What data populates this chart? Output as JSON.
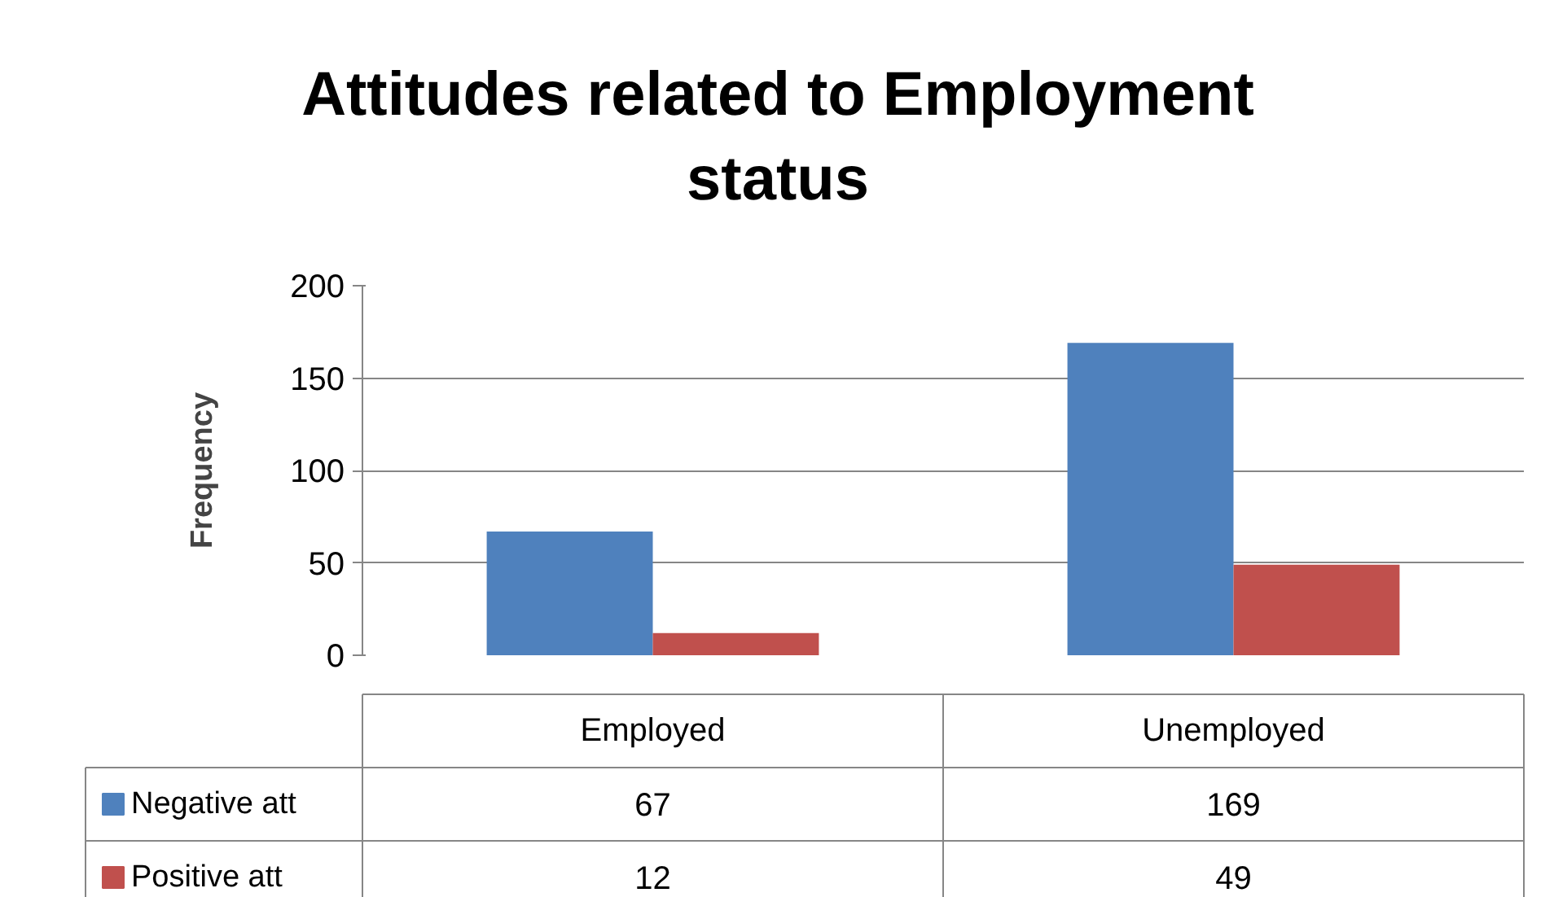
{
  "chart_data": {
    "type": "bar",
    "title": "Attitudes related to Employment status",
    "ylabel": "Frequency",
    "categories": [
      "Employed",
      "Unemployed"
    ],
    "series": [
      {
        "name": "Negative att",
        "color": "#4f81bd",
        "values": [
          67,
          169
        ]
      },
      {
        "name": "Positive att",
        "color": "#c0504d",
        "values": [
          12,
          49
        ]
      }
    ],
    "ylim": [
      0,
      200
    ],
    "yticks": [
      0,
      50,
      100,
      150,
      200
    ],
    "grid": "y",
    "legend": "bottom",
    "data_labels": true
  }
}
